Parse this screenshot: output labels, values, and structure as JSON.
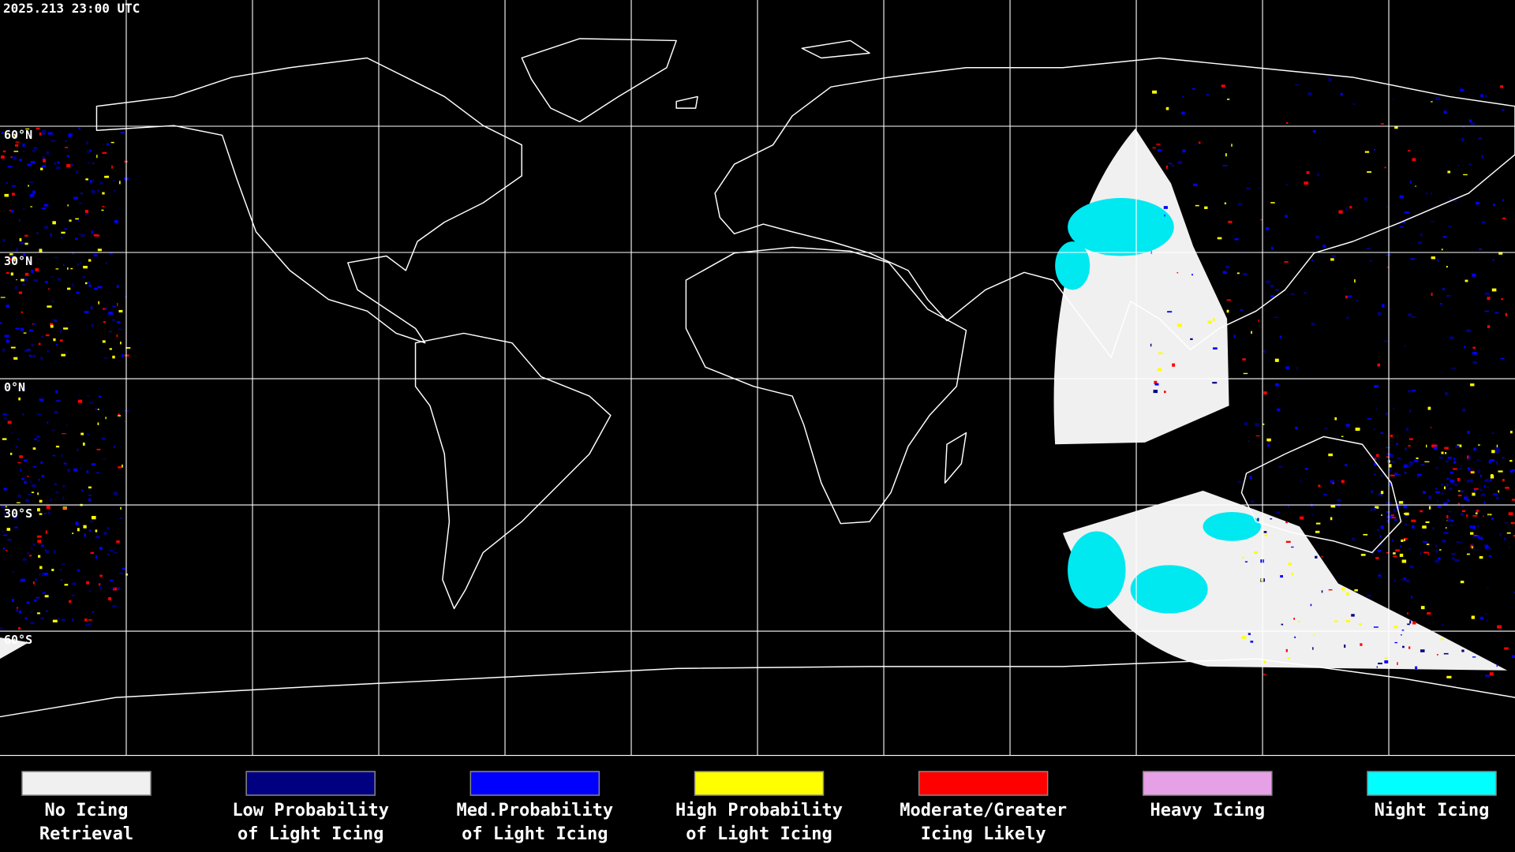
{
  "header": {
    "timestamp": "2025.213 23:00 UTC"
  },
  "map": {
    "lat_labels": [
      "60°N",
      "30°N",
      "0°N",
      "30°S",
      "60°S"
    ]
  },
  "legend": {
    "items": [
      {
        "label_lines": [
          "No Icing",
          "Retrieval"
        ],
        "color": "#f0f0f0"
      },
      {
        "label_lines": [
          "Low Probability",
          "of Light Icing"
        ],
        "color": "#000080"
      },
      {
        "label_lines": [
          "Med.Probability",
          "of Light Icing"
        ],
        "color": "#0000ff"
      },
      {
        "label_lines": [
          "High Probability",
          "of Light Icing"
        ],
        "color": "#ffff00"
      },
      {
        "label_lines": [
          "Moderate/Greater",
          "Icing Likely"
        ],
        "color": "#ff0000"
      },
      {
        "label_lines": [
          "Heavy Icing"
        ],
        "color": "#e6a0e6"
      },
      {
        "label_lines": [
          "Night Icing"
        ],
        "color": "#00ffff"
      }
    ]
  }
}
